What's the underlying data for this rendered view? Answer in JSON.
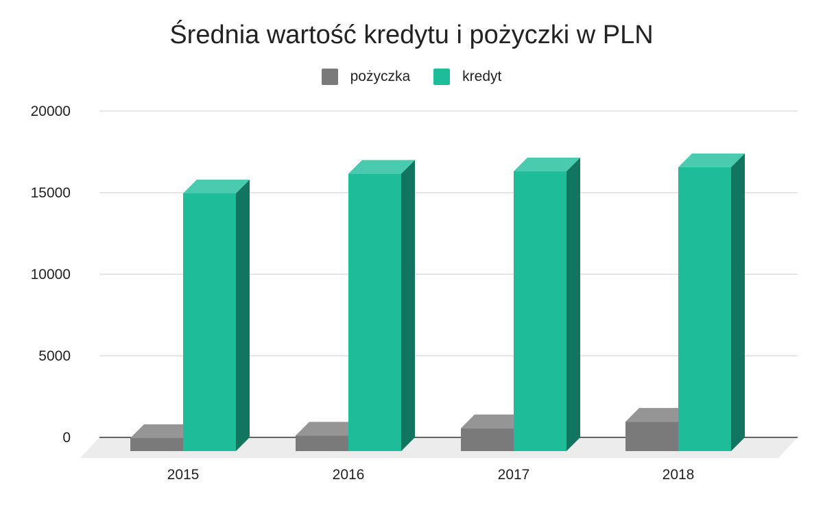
{
  "chart_data": {
    "type": "bar",
    "title": "Średnia wartość kredytu i pożyczki w PLN",
    "categories": [
      "2015",
      "2016",
      "2017",
      "2018"
    ],
    "series": [
      {
        "name": "pożyczka",
        "color": "#7a7a7a",
        "values": [
          800,
          950,
          1400,
          1800
        ]
      },
      {
        "name": "kredyt",
        "color": "#1dbd9a",
        "values": [
          15800,
          17000,
          17150,
          17400
        ]
      }
    ],
    "ylim": [
      0,
      20000
    ],
    "yticks": [
      "0",
      "5000",
      "10000",
      "15000",
      "20000"
    ],
    "xlabel": "",
    "ylabel": "",
    "grid": true,
    "legend_position": "top",
    "style": "3d-column"
  }
}
